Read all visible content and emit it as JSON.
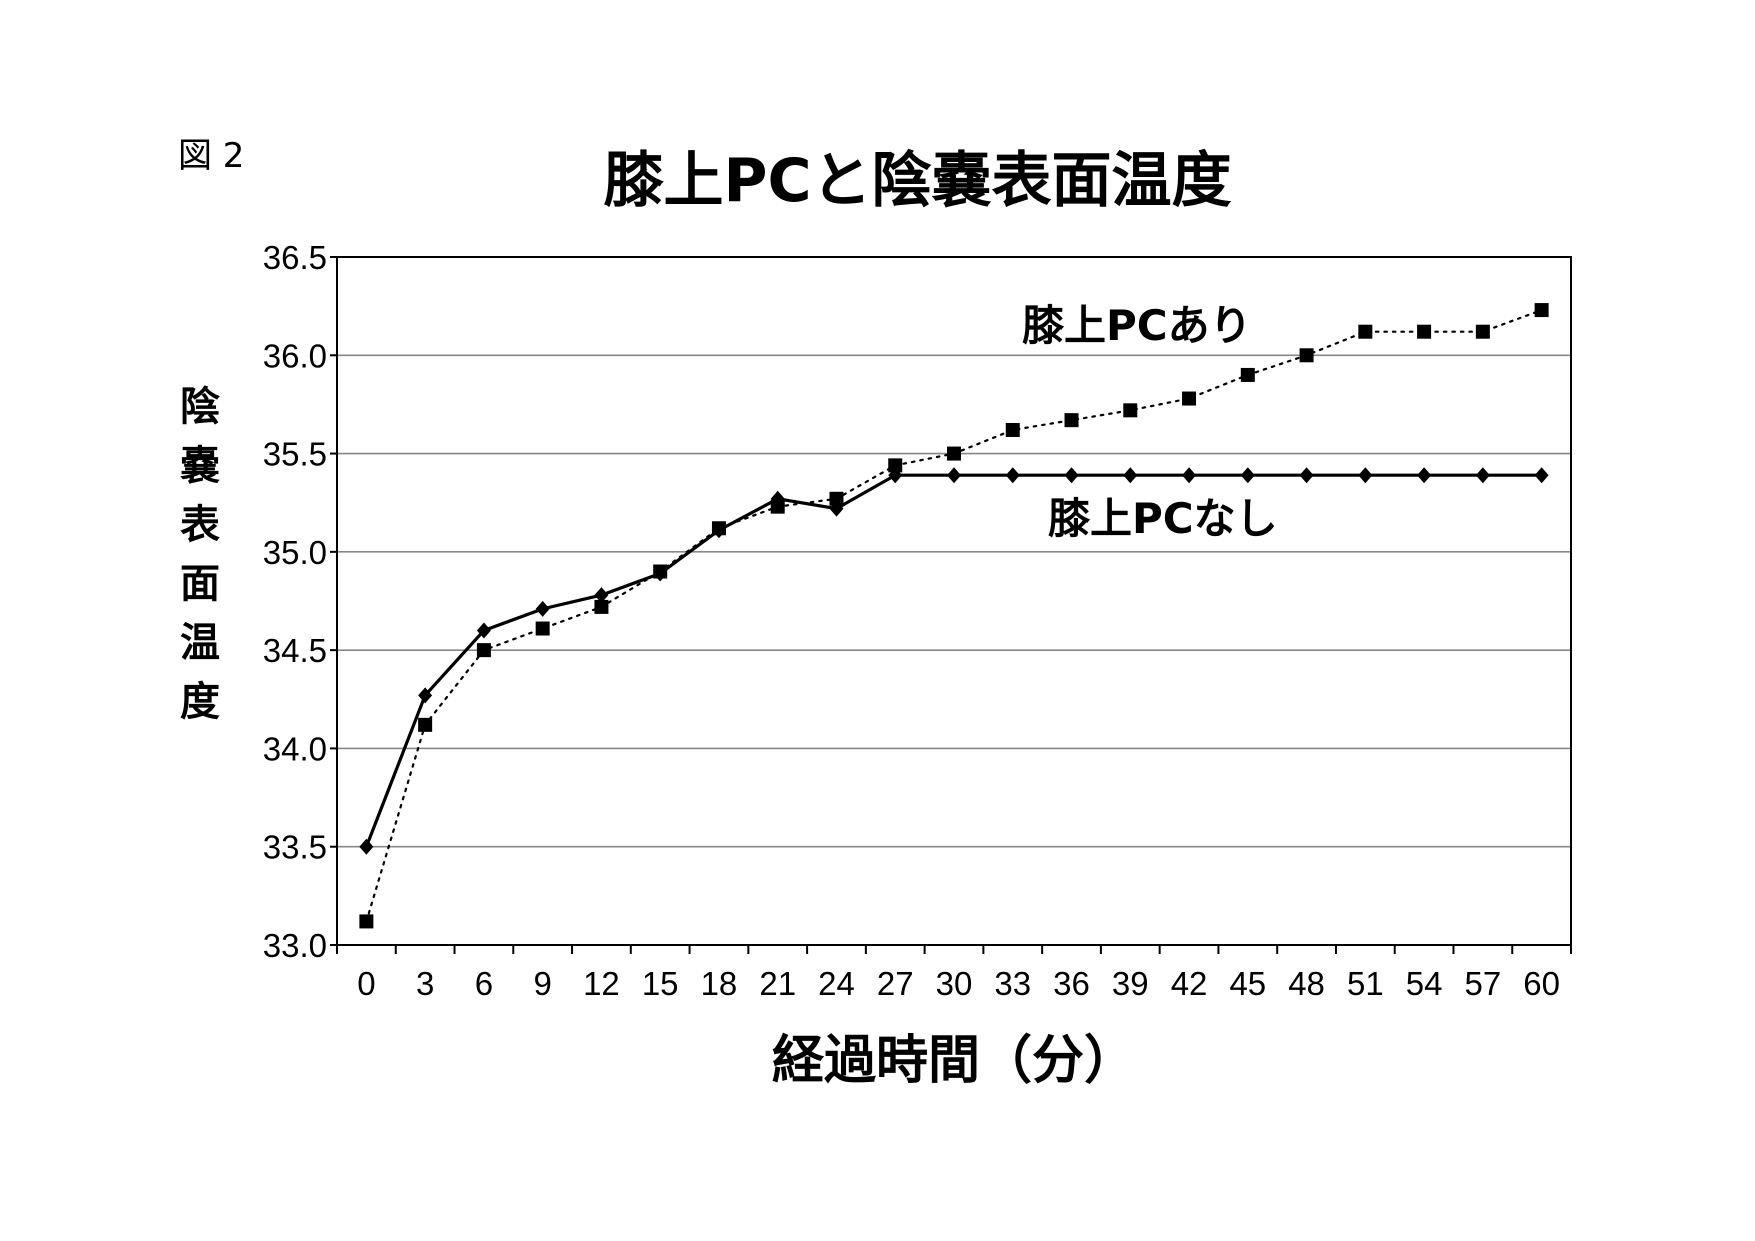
{
  "figure_label": "図 2",
  "chart_data": {
    "type": "line",
    "title": "膝上PCと陰嚢表面温度",
    "xlabel": "経過時間（分）",
    "ylabel": "陰嚢表面温度",
    "categories": [
      "0",
      "3",
      "6",
      "9",
      "12",
      "15",
      "18",
      "21",
      "24",
      "27",
      "30",
      "33",
      "36",
      "39",
      "42",
      "45",
      "48",
      "51",
      "54",
      "57",
      "60"
    ],
    "ylim": [
      33.0,
      36.5
    ],
    "yticks": [
      "33.0",
      "33.5",
      "34.0",
      "34.5",
      "35.0",
      "35.5",
      "36.0",
      "36.5"
    ],
    "grid": "horizontal",
    "series": [
      {
        "name": "膝上PCあり",
        "marker": "square",
        "line": "dotted",
        "color": "#000000",
        "values": [
          33.12,
          34.12,
          34.5,
          34.61,
          34.72,
          34.9,
          35.12,
          35.23,
          35.27,
          35.44,
          35.5,
          35.62,
          35.67,
          35.72,
          35.78,
          35.9,
          36.0,
          36.12,
          36.12,
          36.12,
          36.23
        ]
      },
      {
        "name": "膝上PCなし",
        "marker": "diamond",
        "line": "solid",
        "color": "#000000",
        "values": [
          33.5,
          34.27,
          34.6,
          34.71,
          34.78,
          34.89,
          35.11,
          35.27,
          35.22,
          35.39,
          35.39,
          35.39,
          35.39,
          35.39,
          35.39,
          35.39,
          35.39,
          35.39,
          35.39,
          35.39,
          35.39
        ]
      }
    ]
  }
}
